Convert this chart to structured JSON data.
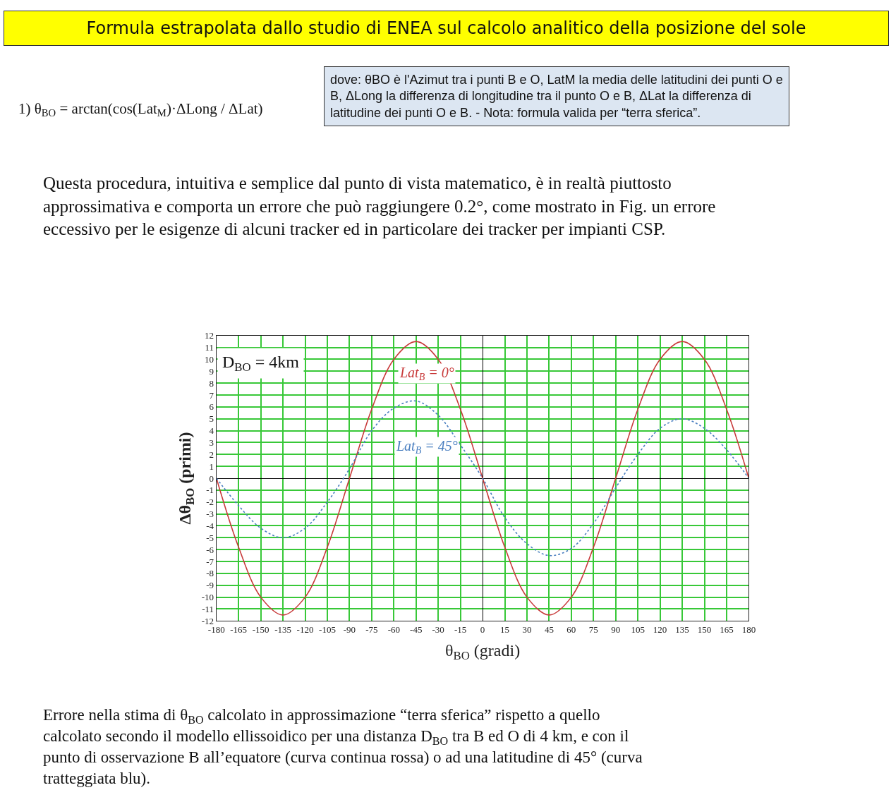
{
  "chart_data": {
    "type": "line",
    "title": "Formula estrapolata dallo studio di ENEA sul calcolo analitico della posizione del sole",
    "xlabel": "θ$_{BO}$ (gradi)",
    "ylabel": "Δθ$_{BO}$ (primi)",
    "x": [
      -180,
      -165,
      -150,
      -135,
      -120,
      -105,
      -90,
      -75,
      -60,
      -45,
      -30,
      -15,
      0,
      15,
      30,
      45,
      60,
      75,
      90,
      105,
      120,
      135,
      150,
      165,
      180
    ],
    "series": [
      {
        "name": "Lat$_{B}$ = 0°",
        "color": "#c83a3a",
        "line_style": "solid",
        "values": [
          0,
          -5.8,
          -10,
          -11.5,
          -10,
          -5.8,
          0,
          5.8,
          10,
          11.5,
          10,
          5.8,
          0,
          -5.8,
          -10,
          -11.5,
          -10,
          -5.8,
          0,
          5.8,
          10,
          11.5,
          10,
          5.8,
          0
        ]
      },
      {
        "name": "Lat$_{B}$ = 45°",
        "color": "#4a7fc0",
        "line_style": "dotted",
        "values": [
          0,
          -2.3,
          -4.2,
          -5,
          -4.2,
          -2,
          0.8,
          4,
          5.9,
          6.5,
          5.3,
          2.8,
          0,
          -3.3,
          -5.5,
          -6.5,
          -5.9,
          -3.8,
          -0.8,
          2,
          4.2,
          5,
          4.2,
          2.4,
          0
        ]
      }
    ],
    "xlim": [
      -180,
      180
    ],
    "ylim": [
      -12,
      12
    ],
    "xticks": [
      -180,
      -165,
      -150,
      -135,
      -120,
      -105,
      -90,
      -75,
      -60,
      -45,
      -30,
      -15,
      0,
      15,
      30,
      45,
      60,
      75,
      90,
      105,
      120,
      135,
      150,
      165,
      180
    ],
    "yticks": [
      -12,
      -11,
      -10,
      -9,
      -8,
      -7,
      -6,
      -5,
      -4,
      -3,
      -2,
      -1,
      0,
      1,
      2,
      3,
      4,
      5,
      6,
      7,
      8,
      9,
      10,
      11,
      12
    ],
    "grid": true,
    "legend": false,
    "annotations": [
      "1) θ$_{BO}$ = arctan(cos(Lat$_{M}$)·ΔLong / ΔLat)",
      "dove: θBO è l'Azimut tra i punti B e O, LatM la media delle latitudini dei punti O e B, ΔLong la differenza di longitudine tra il punto O e B, ΔLat la differenza di latitudine dei punti O e B. - Nota: formula valida per “terra sferica”.",
      "Questa procedura, intuitiva e semplice dal punto di vista matematico, è in realtà piuttosto approssimativa e comporta un errore che può raggiungere 0.2°, come mostrato in Fig. un errore eccessivo per le esigenze di alcuni tracker ed in particolare dei tracker per impianti CSP.",
      "D$_{BO}$ = 4km",
      "Errore nella stima di θ$_{BO}$ calcolato in approssimazione “terra sferica” rispetto a quello calcolato secondo il modello ellissoidico per una distanza D$_{BO}$ tra B ed O di 4 km, e con il punto di osservazione B all’equatore (curva continua rossa) o ad una latitudine di 45° (curva tratteggiata blu)."
    ]
  }
}
